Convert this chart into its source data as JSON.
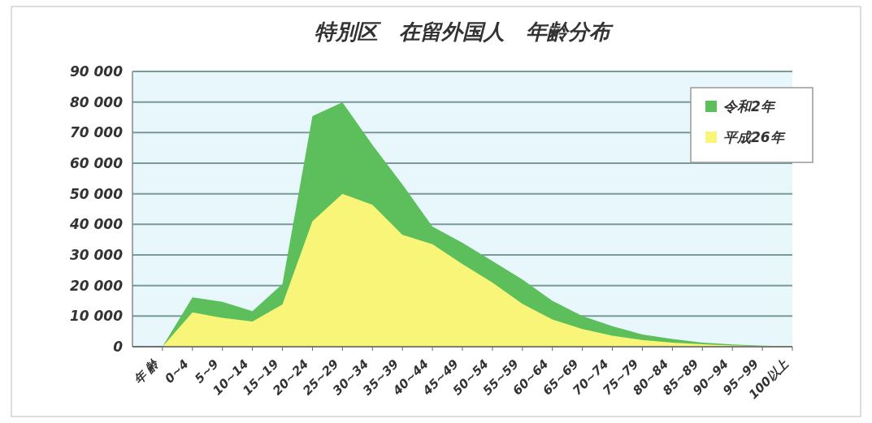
{
  "chart_data": {
    "type": "area",
    "title": "特別区　在留外国人　年齢分布",
    "categories": [
      "年 齢",
      "0~4",
      "5~9",
      "10~14",
      "15~19",
      "20~24",
      "25~29",
      "30~34",
      "35~39",
      "40~44",
      "45~49",
      "50~54",
      "55~59",
      "60~64",
      "65~69",
      "70~74",
      "75~79",
      "80~84",
      "85~89",
      "90~94",
      "95~99",
      "100以上"
    ],
    "series": [
      {
        "name": "令和2年",
        "color": "#5cbf5c",
        "values": [
          0,
          16100,
          14700,
          11600,
          20500,
          75400,
          79900,
          66000,
          53000,
          39300,
          34000,
          28000,
          22000,
          15000,
          10000,
          6700,
          4000,
          2500,
          1300,
          700,
          300,
          100
        ]
      },
      {
        "name": "平成26年",
        "color": "#f8f578",
        "values": [
          0,
          11200,
          9400,
          8200,
          13800,
          41000,
          50000,
          46400,
          36600,
          33500,
          27000,
          21000,
          14000,
          8900,
          5800,
          3600,
          2200,
          1300,
          800,
          400,
          200,
          100
        ]
      }
    ],
    "ylim": [
      0,
      90000
    ],
    "yticks": [
      {
        "value": 0,
        "label": "0"
      },
      {
        "value": 10000,
        "label": "10 000"
      },
      {
        "value": 20000,
        "label": "20 000"
      },
      {
        "value": 30000,
        "label": "30 000"
      },
      {
        "value": 40000,
        "label": "40 000"
      },
      {
        "value": 50000,
        "label": "50 000"
      },
      {
        "value": 60000,
        "label": "60 000"
      },
      {
        "value": 70000,
        "label": "70 000"
      },
      {
        "value": 80000,
        "label": "80 000"
      },
      {
        "value": 90000,
        "label": "90 000"
      }
    ],
    "grid": "y",
    "legend": "top right"
  }
}
